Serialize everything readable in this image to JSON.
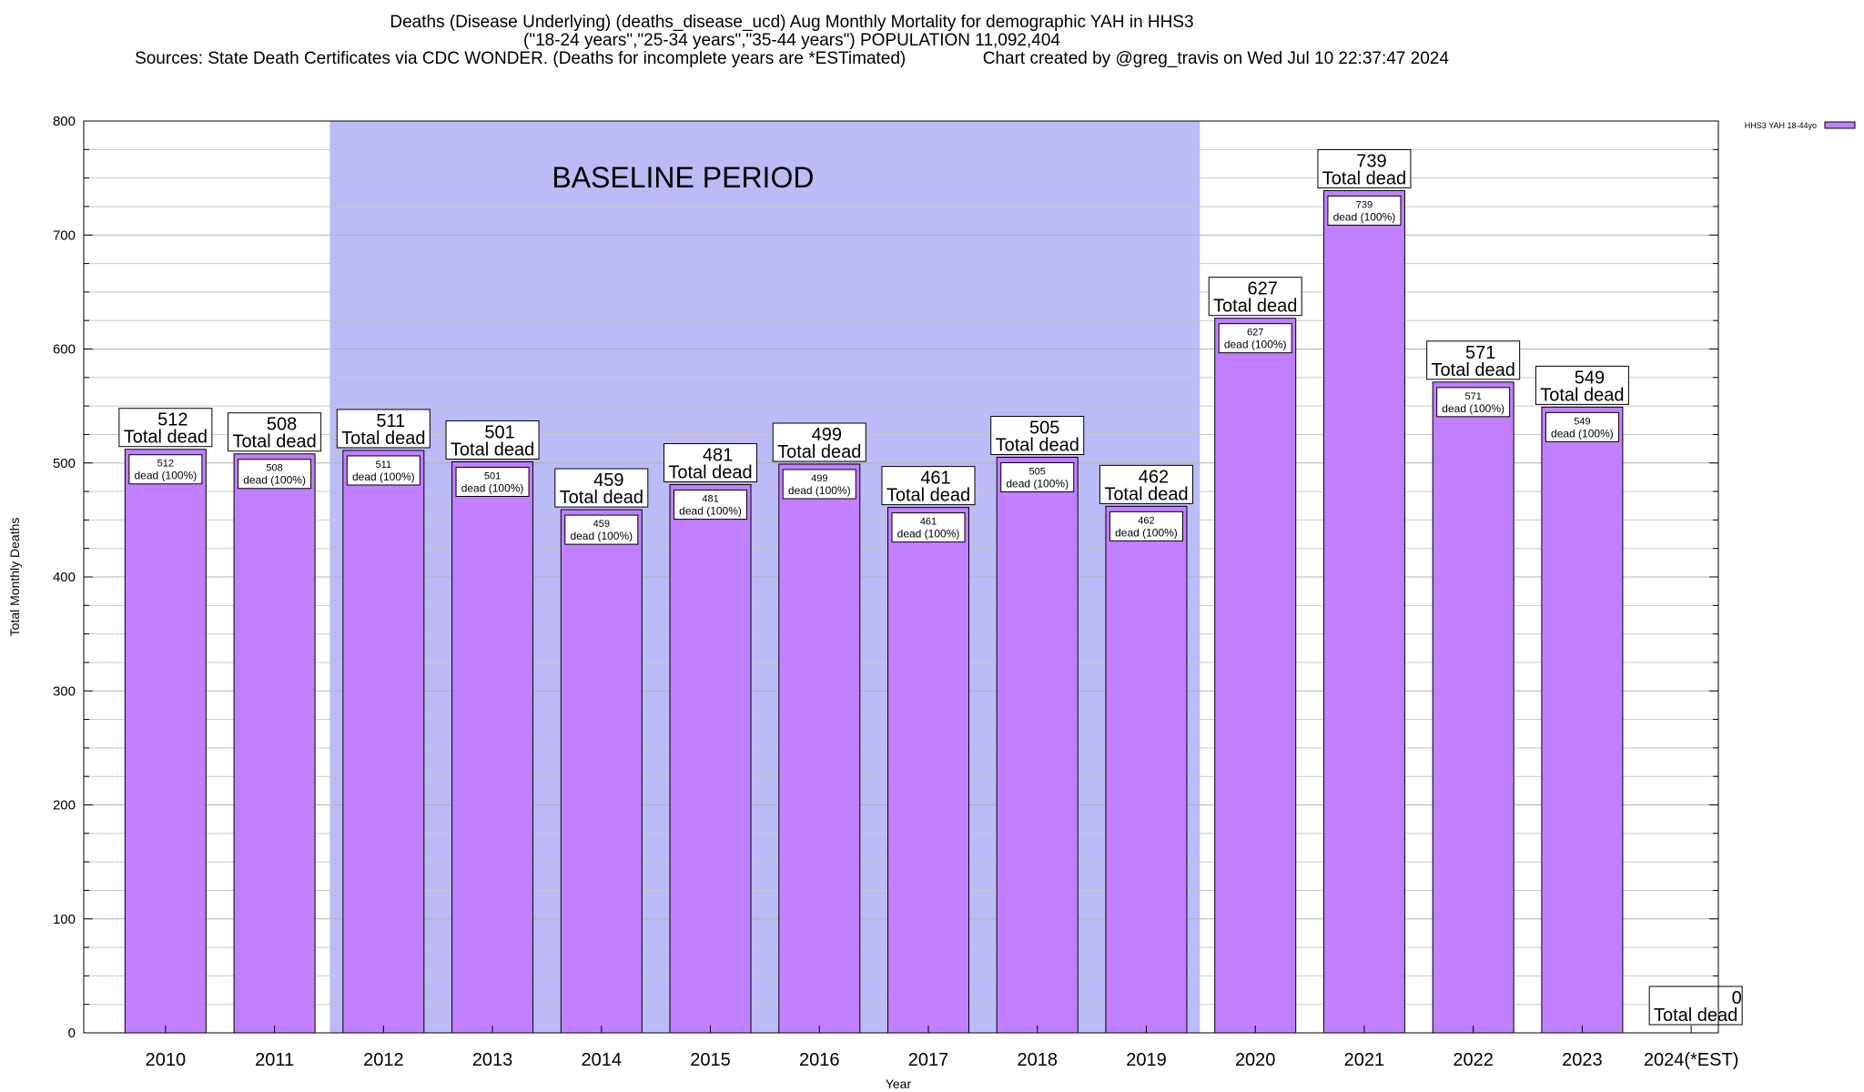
{
  "header": {
    "title_line1": "Deaths (Disease Underlying) (deaths_disease_ucd) Aug Monthly Mortality for demographic YAH in HHS3",
    "title_line2": "(\"18-24 years\",\"25-34 years\",\"35-44 years\") POPULATION 11,092,404",
    "title_line3": "Sources: State Death Certificates via CDC WONDER. (Deaths for incomplete years are *ESTimated)                Chart created by @greg_travis on Wed Jul 10 22:37:47 2024"
  },
  "chart_data": {
    "type": "bar",
    "categories": [
      "2010",
      "2011",
      "2012",
      "2013",
      "2014",
      "2015",
      "2016",
      "2017",
      "2018",
      "2019",
      "2020",
      "2021",
      "2022",
      "2023",
      "2024(*EST)"
    ],
    "series": [
      {
        "name": "HHS3 YAH 18-44yo",
        "values": [
          512,
          508,
          511,
          501,
          459,
          481,
          499,
          461,
          505,
          462,
          627,
          739,
          571,
          549,
          0
        ]
      }
    ],
    "title": "Deaths (Disease Underlying) (deaths_disease_ucd) Aug Monthly Mortality for demographic YAH in HHS3",
    "xlabel": "Year",
    "ylabel": "Total Monthly Deaths",
    "ylim": [
      0,
      800
    ],
    "yticks": [
      0,
      100,
      200,
      300,
      400,
      500,
      600,
      700,
      800
    ],
    "grid": true,
    "legend": {
      "entry": "HHS3 YAH 18-44yo",
      "placement": "top-right outside"
    },
    "bar_label_text": "Total dead",
    "inner_label_text": "dead (100%)",
    "baseline_label": "BASELINE PERIOD",
    "baseline_range": [
      "2012",
      "2019"
    ],
    "colors": {
      "bar_fill": "#c080ff",
      "baseline_fill": "#bbbbf8",
      "legend_swatch": "#c080ff"
    }
  }
}
